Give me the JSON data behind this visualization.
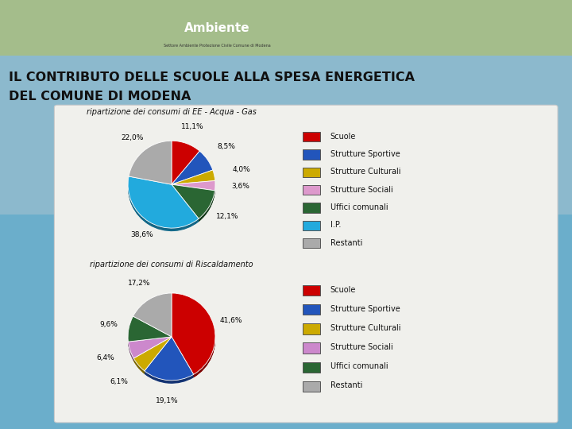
{
  "title_line1": "IL CONTRIBUTO DELLE SCUOLE ALLA SPESA ENERGETICA",
  "title_line2": "DEL COMUNE DI MODENA",
  "chart1_title": "ripartizione dei consumi di EE - Acqua - Gas",
  "chart2_title": "ripartizione dei consumi di Riscaldamento",
  "chart1_values": [
    11.1,
    8.5,
    4.0,
    3.6,
    12.1,
    38.6,
    22.0
  ],
  "chart2_values": [
    41.6,
    19.1,
    6.1,
    6.4,
    9.6,
    17.2
  ],
  "chart1_labels": [
    "11,1%",
    "8,5%",
    "4,0%",
    "3,6%",
    "12,1%",
    "38,6%",
    "22,0%"
  ],
  "chart2_labels": [
    "41,6%",
    "19,1%",
    "6,1%",
    "6,4%",
    "9,6%",
    "17,2%"
  ],
  "legend1": [
    "Scuole",
    "Strutture Sportive",
    "Strutture Culturali",
    "Strutture Sociali",
    "Uffici comunali",
    "I.P.",
    "Restanti"
  ],
  "legend2": [
    "Scuole",
    "Strutture Sportive",
    "Strutture Culturali",
    "Strutture Sociali",
    "Uffici comunali",
    "Restanti"
  ],
  "colors1": [
    "#CC0000",
    "#2255BB",
    "#CCAA00",
    "#DD99CC",
    "#2A6633",
    "#22AADD",
    "#AAAAAA"
  ],
  "colors2": [
    "#CC0000",
    "#2255BB",
    "#CCAA00",
    "#CC88CC",
    "#2A6633",
    "#AAAAAA"
  ],
  "bg_top_color": "#88BBDD",
  "bg_bottom_color": "#55AACC",
  "header_bg": "#AACCAA",
  "panel_color": "#F4F4F0",
  "title_color": "#111111",
  "chart_title_color": "#111111",
  "label_radius1": [
    1.2,
    1.25,
    1.3,
    1.25,
    1.2,
    1.15,
    1.18
  ],
  "label_radius2": [
    1.15,
    1.2,
    1.25,
    1.25,
    1.2,
    1.2
  ]
}
